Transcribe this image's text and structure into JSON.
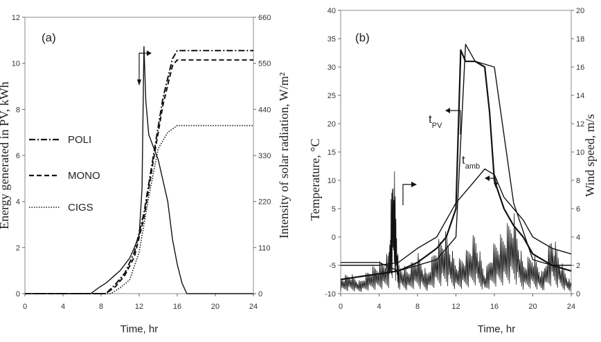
{
  "chart_data": [
    {
      "panel_label": "(a)",
      "type": "line",
      "xlabel": "Time, hr",
      "ylabel": "Energy generated in  PV, kWh",
      "y2label": "Intensity of solar radiation, W/m²",
      "xlim": [
        0,
        24
      ],
      "ylim": [
        0,
        12
      ],
      "y2lim": [
        0,
        660
      ],
      "xticks": [
        "0",
        "4",
        "8",
        "12",
        "16",
        "20",
        "24"
      ],
      "yticks": [
        "0",
        "2",
        "4",
        "6",
        "8",
        "10",
        "12"
      ],
      "y2ticks": [
        "0",
        "110",
        "220",
        "330",
        "440",
        "550",
        "660"
      ],
      "grid": false,
      "legend_position": "left",
      "series": [
        {
          "name": "POLI",
          "style": "dashdot",
          "axis": "left",
          "x": [
            0,
            8.5,
            9.5,
            10.5,
            11.5,
            12.5,
            13.5,
            14.5,
            15.5,
            16,
            24
          ],
          "y": [
            0,
            0,
            0.4,
            0.9,
            1.8,
            3.5,
            6,
            8.5,
            10.2,
            10.55,
            10.55
          ]
        },
        {
          "name": "MONO",
          "style": "dashed",
          "axis": "left",
          "x": [
            0,
            8.5,
            9.5,
            10.5,
            11.5,
            12.5,
            13.5,
            14.5,
            15.5,
            16,
            24
          ],
          "y": [
            0,
            0,
            0.3,
            0.8,
            1.6,
            3.3,
            5.8,
            8.2,
            9.9,
            10.15,
            10.15
          ]
        },
        {
          "name": "CIGS",
          "style": "dotted",
          "axis": "left",
          "x": [
            0,
            9,
            10,
            11,
            12,
            13,
            14,
            15,
            16,
            24
          ],
          "y": [
            0,
            0,
            0.25,
            0.6,
            1.8,
            4.2,
            6.3,
            7.0,
            7.3,
            7.3
          ]
        },
        {
          "name": "",
          "style": "solid",
          "axis": "right",
          "x": [
            0,
            6.9,
            7.5,
            8,
            8.5,
            9,
            9.5,
            10,
            10.5,
            11,
            11.5,
            12,
            12.3,
            12.5,
            12.7,
            13,
            13.5,
            14,
            14.5,
            15,
            15.5,
            16,
            16.5,
            17,
            24
          ],
          "y": [
            0,
            0,
            10,
            18,
            25,
            35,
            45,
            55,
            70,
            85,
            110,
            140,
            250,
            590,
            460,
            380,
            350,
            320,
            270,
            220,
            130,
            70,
            25,
            0,
            0
          ]
        }
      ]
    },
    {
      "panel_label": "(b)",
      "type": "line",
      "xlabel": "Time, hr",
      "ylabel": "Temperature, °C",
      "y2label": "Wind speed, m/s",
      "xlim": [
        0,
        24
      ],
      "ylim": [
        -10,
        40
      ],
      "y2lim": [
        0,
        20
      ],
      "xticks": [
        "0",
        "4",
        "8",
        "12",
        "16",
        "20",
        "24"
      ],
      "yticks": [
        "-10",
        "-5",
        "0",
        "5",
        "10",
        "15",
        "20",
        "25",
        "30",
        "35",
        "40"
      ],
      "y2ticks": [
        "0",
        "2",
        "4",
        "6",
        "8",
        "10",
        "12",
        "14",
        "16",
        "18",
        "20"
      ],
      "grid": false,
      "series": [
        {
          "name": "t_PV",
          "style": "solid-bold",
          "axis": "left",
          "x": [
            0,
            2,
            4,
            6,
            8,
            10,
            11,
            12,
            12.5,
            13,
            14,
            15,
            15.5,
            16,
            17,
            18,
            19,
            20,
            22,
            24
          ],
          "y": [
            -7.5,
            -7,
            -6.5,
            -6,
            -4.5,
            -2,
            0,
            5,
            33,
            31,
            31,
            30,
            22,
            10,
            5,
            2,
            0,
            -3,
            -5,
            -6
          ]
        },
        {
          "name": "t_amb",
          "style": "solid",
          "axis": "left",
          "x": [
            0,
            2,
            4,
            6,
            8,
            10,
            12,
            14,
            15,
            16,
            17,
            18,
            19,
            20,
            22,
            24
          ],
          "y": [
            -5,
            -5,
            -5,
            -4.5,
            -2,
            0,
            6,
            10,
            12,
            11,
            7,
            5,
            3,
            0,
            -2,
            -3
          ]
        },
        {
          "name": "",
          "style": "solid",
          "axis": "left",
          "x": [
            0,
            2,
            4,
            6,
            8,
            10,
            12,
            13,
            14,
            16,
            18,
            20,
            22,
            24
          ],
          "y": [
            -4.5,
            -4.5,
            -4.5,
            -6,
            -5,
            -4,
            0,
            34,
            31,
            30,
            6,
            -4,
            -5,
            -5
          ]
        },
        {
          "name": "",
          "style": "spiky",
          "axis": "right",
          "x": [
            0,
            1,
            2,
            3,
            4,
            5,
            5.5,
            6,
            7,
            8,
            9,
            10,
            11,
            12,
            13,
            14,
            15,
            16,
            17,
            18,
            19,
            20,
            21,
            22,
            23,
            24
          ],
          "y": [
            0.8,
            1,
            0.6,
            1.2,
            1.5,
            2,
            7,
            1.5,
            1.2,
            2,
            1,
            2.5,
            3,
            1.5,
            2,
            3,
            1,
            2.5,
            3,
            4,
            1.5,
            2,
            1,
            3,
            1.5,
            0.5
          ]
        }
      ]
    }
  ],
  "legend": {
    "poli": "POLI",
    "mono": "MONO",
    "cigs": "CIGS"
  },
  "annotations": {
    "tpv_main": "t",
    "tpv_sub": "PV",
    "tamb_main": "t",
    "tamb_sub": "amb"
  }
}
